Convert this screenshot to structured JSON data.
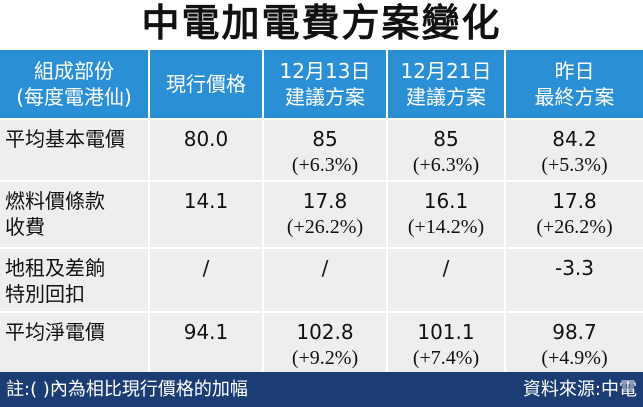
{
  "title": "中電加電費方案變化",
  "table": {
    "header": [
      [
        "組成部份",
        "(每度電港仙)"
      ],
      [
        "現行價格"
      ],
      [
        "12月13日",
        "建議方案"
      ],
      [
        "12月21日",
        "建議方案"
      ],
      [
        "昨日",
        "最終方案"
      ]
    ],
    "rows": [
      [
        [
          "平均基本電價"
        ],
        [
          "80.0"
        ],
        [
          "85",
          "(+6.3%)"
        ],
        [
          "85",
          "(+6.3%)"
        ],
        [
          "84.2",
          "(+5.3%)"
        ]
      ],
      [
        [
          "燃料價條款",
          "收費"
        ],
        [
          "14.1"
        ],
        [
          "17.8",
          "(+26.2%)"
        ],
        [
          "16.1",
          "(+14.2%)"
        ],
        [
          "17.8",
          "(+26.2%)"
        ]
      ],
      [
        [
          "地租及差餉",
          "特別回扣"
        ],
        [
          "/"
        ],
        [
          "/"
        ],
        [
          "/"
        ],
        [
          "-3.3"
        ]
      ],
      [
        [
          "平均淨電價"
        ],
        [
          "94.1"
        ],
        [
          "102.8",
          "(+9.2%)"
        ],
        [
          "101.1",
          "(+7.4%)"
        ],
        [
          "98.7",
          "(+4.9%)"
        ]
      ]
    ]
  },
  "footer": {
    "note": "註:( )內為相比現行價格的加幅",
    "source": "資料來源:中電"
  }
}
